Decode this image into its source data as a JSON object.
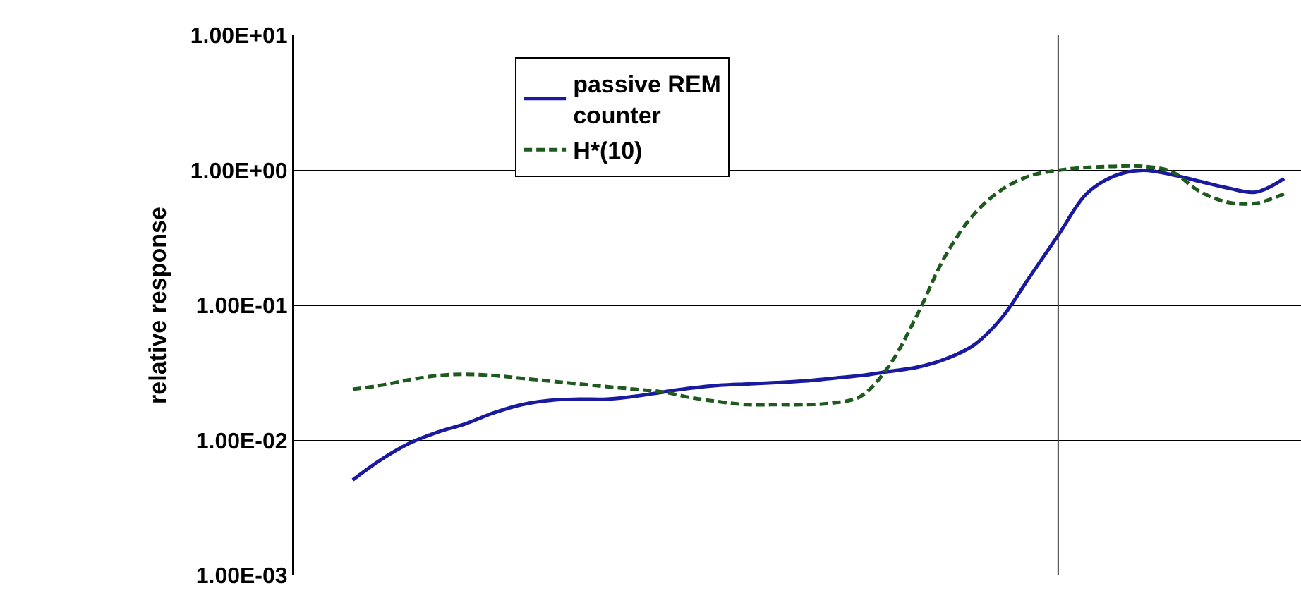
{
  "chart_data": {
    "type": "line",
    "ylabel": "relative response",
    "categories": [
      null,
      null,
      null,
      null,
      null,
      null,
      null,
      null,
      null,
      null,
      null,
      null,
      null,
      null,
      null,
      null,
      null,
      null,
      null,
      null,
      null,
      null,
      null,
      null,
      null,
      null,
      null,
      null,
      null,
      null,
      null,
      null,
      null,
      null
    ],
    "series": [
      {
        "name": "passive REM\ncounter",
        "color": "#1a1aa0",
        "line_style": "solid",
        "values": [
          0.0051,
          0.0072,
          0.0095,
          0.0115,
          0.0133,
          0.016,
          0.0184,
          0.0198,
          0.0202,
          0.0202,
          0.0212,
          0.0228,
          0.0244,
          0.0256,
          0.0262,
          0.0268,
          0.0275,
          0.0288,
          0.0302,
          0.0324,
          0.0348,
          0.04,
          0.0506,
          0.081,
          0.164,
          0.331,
          0.67,
          0.91,
          1.0,
          0.93,
          0.83,
          0.74,
          0.69,
          0.87
        ]
      },
      {
        "name": "H*(10)",
        "color": "#1e5a1e",
        "line_style": "dashed",
        "values": [
          0.0239,
          0.0256,
          0.0281,
          0.0302,
          0.0309,
          0.0302,
          0.0288,
          0.0275,
          0.0262,
          0.025,
          0.0239,
          0.0228,
          0.0207,
          0.0193,
          0.0184,
          0.0184,
          0.0184,
          0.0189,
          0.0212,
          0.0356,
          0.085,
          0.233,
          0.47,
          0.72,
          0.91,
          1.0,
          1.05,
          1.07,
          1.07,
          0.98,
          0.7,
          0.58,
          0.57,
          0.67
        ]
      }
    ],
    "log": "y",
    "ylim": [
      0.001,
      10
    ],
    "yticks": [
      {
        "value": 0.001,
        "label": "1.00E-03"
      },
      {
        "value": 0.01,
        "label": "1.00E-02"
      },
      {
        "value": 0.1,
        "label": "1.00E-01"
      },
      {
        "value": 1,
        "label": "1.00E+00"
      },
      {
        "value": 10,
        "label": "1.00E+01"
      }
    ],
    "grid": "y",
    "legend": "top left",
    "marker": "none",
    "tick_labels": "y"
  }
}
